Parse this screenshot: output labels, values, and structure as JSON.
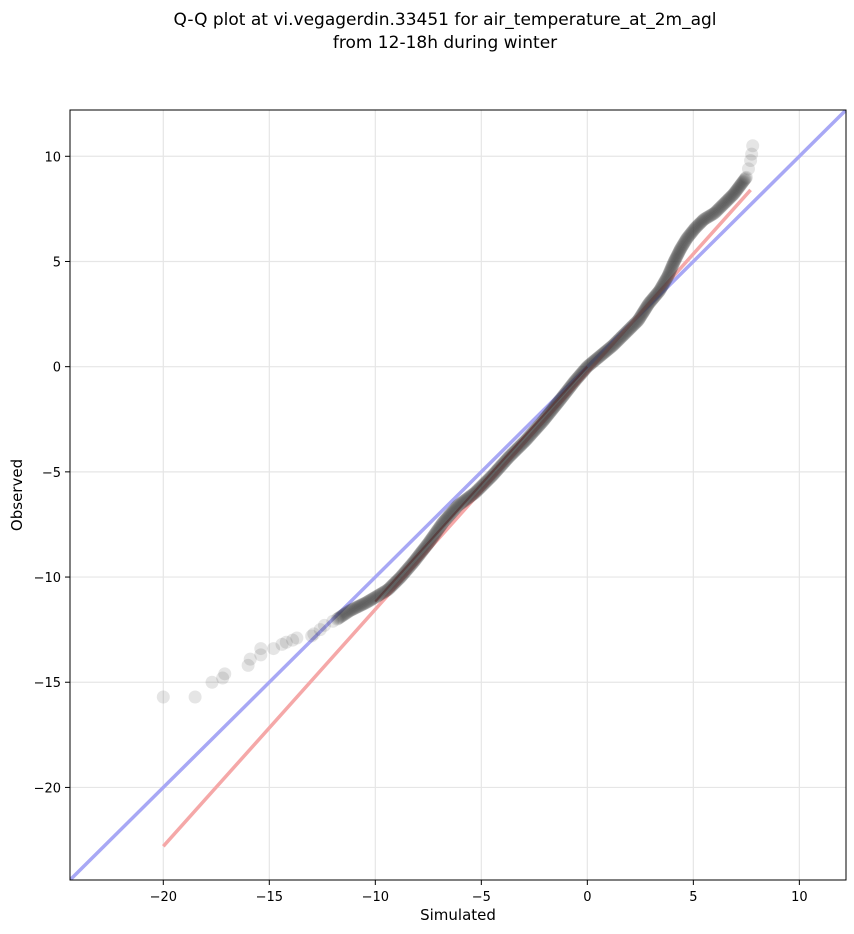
{
  "chart_data": {
    "type": "scatter",
    "title_line1": "Q-Q plot at vi.vegagerdin.33451 for air_temperature_at_2m_agl",
    "title_line2": "from 12-18h during winter",
    "xlabel": "Simulated",
    "ylabel": "Observed",
    "xlim": [
      -24.4,
      12.2
    ],
    "ylim": [
      -24.4,
      12.2
    ],
    "xticks": [
      -20,
      -15,
      -10,
      -5,
      0,
      5,
      10
    ],
    "yticks": [
      -20,
      -15,
      -10,
      -5,
      0,
      5,
      10
    ],
    "xtick_labels": [
      "−20",
      "−15",
      "−10",
      "−5",
      "0",
      "5",
      "10"
    ],
    "ytick_labels": [
      "−20",
      "−15",
      "−10",
      "−5",
      "0",
      "5",
      "10"
    ],
    "grid": true,
    "colors": {
      "points": "#333333",
      "identity_line": "#a8a8f5",
      "fit_line": "#f5a8a8",
      "fit_line_dark": "#b00000"
    },
    "series": [
      {
        "points": [
          [
            -20.0,
            -15.7
          ],
          [
            -18.5,
            -15.7
          ],
          [
            -17.7,
            -15.0
          ],
          [
            -17.2,
            -14.8
          ],
          [
            -17.1,
            -14.6
          ],
          [
            -16.0,
            -14.2
          ],
          [
            -15.9,
            -13.9
          ],
          [
            -15.4,
            -13.7
          ],
          [
            -15.4,
            -13.4
          ],
          [
            -14.8,
            -13.4
          ],
          [
            -14.4,
            -13.2
          ],
          [
            -14.2,
            -13.1
          ],
          [
            -13.9,
            -13.0
          ],
          [
            -13.7,
            -12.9
          ],
          [
            -13.0,
            -12.8
          ],
          [
            -12.9,
            -12.7
          ],
          [
            -12.6,
            -12.5
          ],
          [
            -12.4,
            -12.3
          ],
          [
            -12.0,
            -12.1
          ],
          [
            -11.8,
            -12.0
          ],
          [
            -11.5,
            -11.8
          ],
          [
            -11.2,
            -11.6
          ],
          [
            -10.8,
            -11.4
          ],
          [
            -10.4,
            -11.2
          ],
          [
            -9.9,
            -10.9
          ],
          [
            -9.4,
            -10.6
          ],
          [
            -8.8,
            -10.0
          ],
          [
            -8.2,
            -9.3
          ],
          [
            -7.5,
            -8.4
          ],
          [
            -6.8,
            -7.4
          ],
          [
            -6.1,
            -6.6
          ],
          [
            -5.3,
            -6.0
          ],
          [
            -4.5,
            -5.2
          ],
          [
            -3.7,
            -4.3
          ],
          [
            -2.9,
            -3.5
          ],
          [
            -2.1,
            -2.6
          ],
          [
            -1.3,
            -1.6
          ],
          [
            -0.6,
            -0.7
          ],
          [
            0.0,
            0.0
          ],
          [
            0.6,
            0.5
          ],
          [
            1.2,
            1.0
          ],
          [
            1.8,
            1.6
          ],
          [
            2.4,
            2.2
          ],
          [
            2.9,
            3.0
          ],
          [
            3.4,
            3.6
          ],
          [
            3.8,
            4.3
          ],
          [
            4.1,
            5.0
          ],
          [
            4.4,
            5.6
          ],
          [
            4.7,
            6.1
          ],
          [
            5.1,
            6.6
          ],
          [
            5.5,
            7.0
          ],
          [
            6.0,
            7.3
          ],
          [
            6.5,
            7.8
          ],
          [
            6.9,
            8.2
          ],
          [
            7.2,
            8.6
          ],
          [
            7.5,
            9.0
          ],
          [
            7.6,
            9.4
          ],
          [
            7.7,
            9.8
          ],
          [
            7.75,
            10.1
          ],
          [
            7.8,
            10.5
          ]
        ]
      }
    ],
    "identity_line": [
      [
        -24.4,
        -24.4
      ],
      [
        12.2,
        12.2
      ]
    ],
    "fit_line": [
      [
        -20.0,
        -22.8
      ],
      [
        7.7,
        8.4
      ]
    ]
  }
}
